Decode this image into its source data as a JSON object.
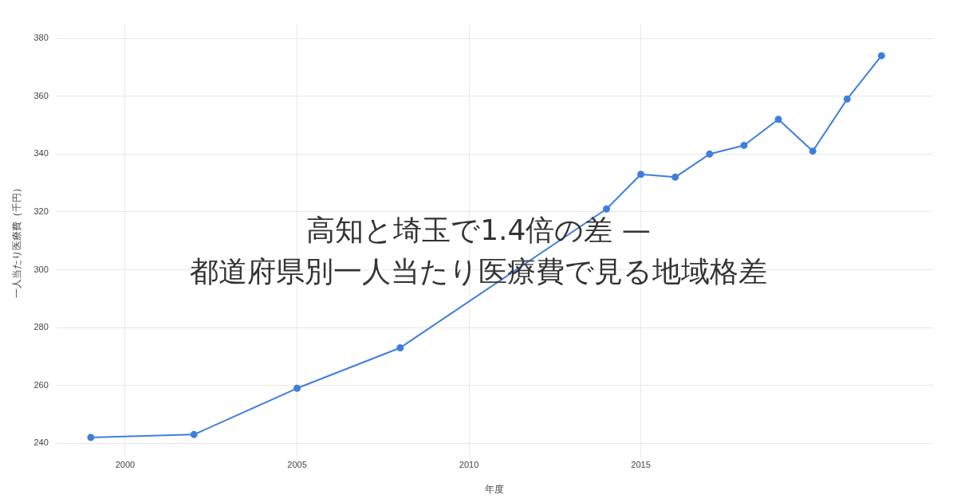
{
  "chart_data": {
    "type": "line",
    "title": "高知と埼玉で1.4倍の差 —\n都道府県別一人当たり医療費で見る地域格差",
    "xlabel": "年度",
    "ylabel": "一人当たり医療費（千円）",
    "x": [
      1999,
      2002,
      2005,
      2008,
      2014,
      2015,
      2016,
      2017,
      2018,
      2019,
      2020,
      2021,
      2022
    ],
    "series": [
      {
        "color": "#3f7fdc",
        "values": [
          242,
          243,
          259,
          273,
          321,
          333,
          332,
          340,
          343,
          352,
          341,
          359,
          374
        ]
      }
    ],
    "xlim": [
      1998,
      2023.5
    ],
    "xticks": [
      2000,
      2005,
      2010,
      2015
    ],
    "ylim": [
      235,
      385
    ],
    "yticks": [
      240,
      260,
      280,
      300,
      320,
      340,
      360,
      380
    ],
    "grid": true,
    "legend": false,
    "marker": "circle",
    "line_style": "solid"
  }
}
